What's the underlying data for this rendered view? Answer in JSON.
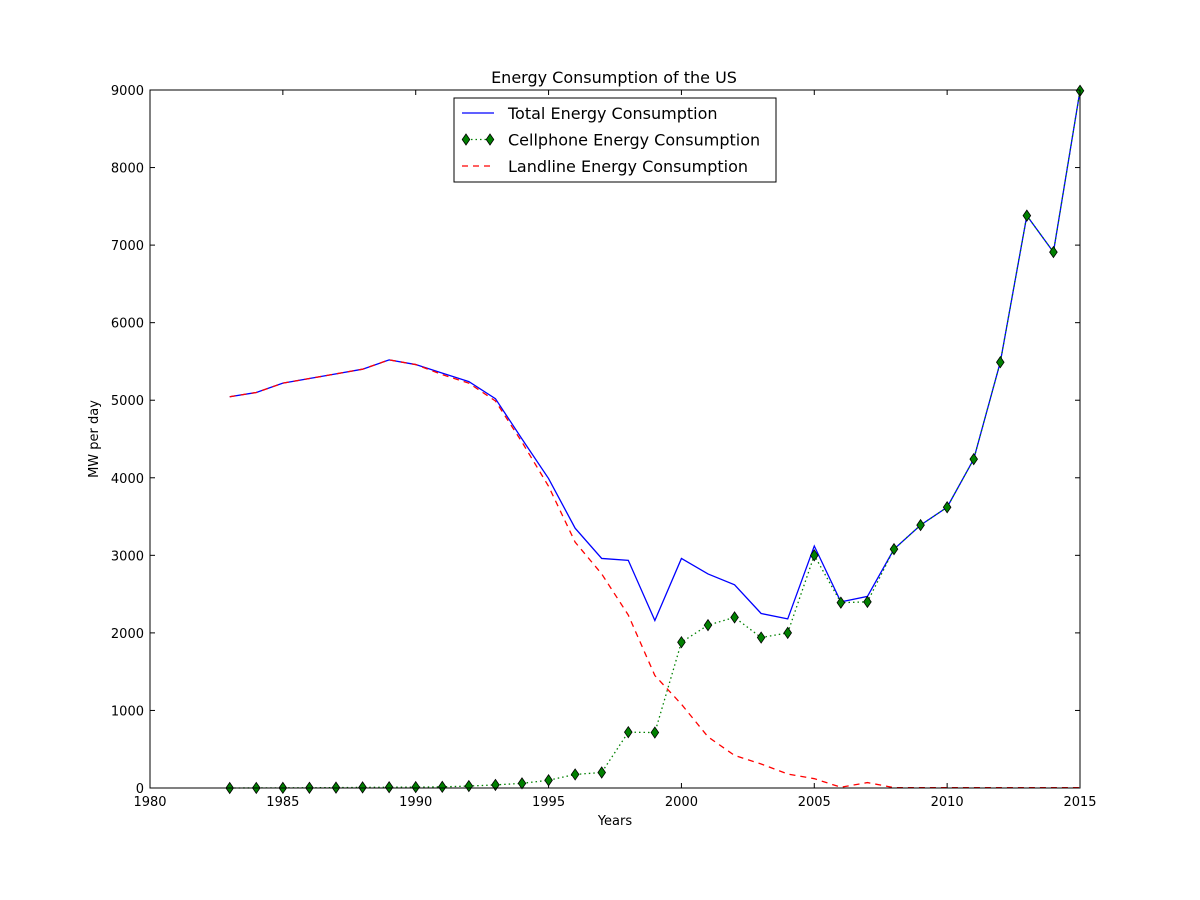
{
  "chart_data": {
    "type": "line",
    "title": "Energy Consumption of the US",
    "xlabel": "Years",
    "ylabel": "MW per day",
    "xlim": [
      1980,
      2015
    ],
    "ylim": [
      0,
      9000
    ],
    "xticks": [
      1980,
      1985,
      1990,
      1995,
      2000,
      2005,
      2010,
      2015
    ],
    "yticks": [
      0,
      1000,
      2000,
      3000,
      4000,
      5000,
      6000,
      7000,
      8000,
      9000
    ],
    "grid": false,
    "legend_position": "top-center",
    "x": [
      1983,
      1984,
      1985,
      1986,
      1987,
      1988,
      1989,
      1990,
      1991,
      1992,
      1993,
      1994,
      1995,
      1996,
      1997,
      1998,
      1999,
      2000,
      2001,
      2002,
      2003,
      2004,
      2005,
      2006,
      2007,
      2008,
      2009,
      2010,
      2011,
      2012,
      2013,
      2014,
      2015
    ],
    "series": [
      {
        "name": "Total Energy Consumption",
        "style": "solid",
        "color": "#0000ff",
        "marker": "none",
        "values": [
          5045,
          5100,
          5220,
          5280,
          5340,
          5400,
          5520,
          5460,
          5350,
          5240,
          5020,
          4500,
          3990,
          3350,
          2960,
          2935,
          2160,
          2960,
          2760,
          2620,
          2250,
          2180,
          3120,
          2400,
          2470,
          3080,
          3390,
          3620,
          4240,
          5490,
          7380,
          6910,
          8990
        ]
      },
      {
        "name": "Cellphone Energy Consumption",
        "style": "dotted",
        "color": "#008000",
        "marker": "diamond",
        "values": [
          0,
          1,
          2,
          3,
          5,
          8,
          10,
          12,
          15,
          25,
          40,
          60,
          100,
          175,
          200,
          720,
          715,
          1880,
          2100,
          2200,
          1940,
          2000,
          3000,
          2390,
          2400,
          3080,
          3390,
          3620,
          4240,
          5490,
          7380,
          6910,
          8990
        ]
      },
      {
        "name": "Landline Energy Consumption",
        "style": "dashed",
        "color": "#ff0000",
        "marker": "none",
        "values": [
          5045,
          5100,
          5220,
          5280,
          5340,
          5400,
          5520,
          5460,
          5330,
          5220,
          4990,
          4460,
          3890,
          3170,
          2760,
          2230,
          1450,
          1080,
          660,
          420,
          310,
          180,
          120,
          10,
          70,
          5,
          5,
          5,
          5,
          5,
          5,
          5,
          5
        ]
      }
    ]
  }
}
